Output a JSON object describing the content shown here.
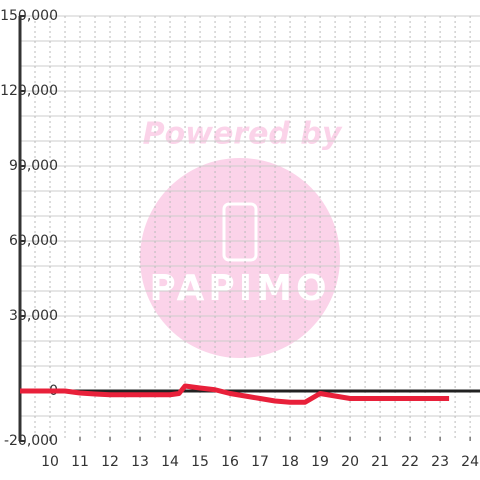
{
  "chart_data": {
    "type": "line",
    "watermark": {
      "title": "Powered by",
      "logo": "PAPIMO"
    },
    "x": [
      9,
      10.5,
      11,
      11.5,
      12,
      13,
      14,
      14.3,
      14.5,
      15,
      15.5,
      16,
      16.5,
      17,
      17.5,
      18,
      18.5,
      19,
      19.5,
      20,
      21,
      22,
      23.3
    ],
    "series": [
      {
        "color": "#e8203a",
        "values": [
          0,
          0,
          -800,
          -1200,
          -1500,
          -1500,
          -1500,
          -1000,
          2000,
          1200,
          500,
          -1000,
          -2000,
          -3000,
          -4000,
          -4500,
          -4500,
          -1000,
          -2000,
          -3000,
          -3000,
          -3000,
          -3000
        ]
      }
    ],
    "xlim": [
      9,
      24.33
    ],
    "xticks": [
      10,
      11,
      12,
      13,
      14,
      15,
      16,
      17,
      18,
      19,
      20,
      21,
      22,
      23,
      24
    ],
    "xgrid": [
      9.5,
      10,
      10.5,
      11,
      11.5,
      12,
      12.5,
      13,
      13.5,
      14,
      14.5,
      15,
      15.5,
      16,
      16.5,
      17,
      17.5,
      18,
      18.5,
      19,
      19.5,
      20,
      20.5,
      21,
      21.5,
      22,
      22.5,
      23,
      23.5,
      24
    ],
    "ylim": [
      -20000,
      150000
    ],
    "yticks": [
      {
        "value": -20000,
        "label": "-20,000"
      },
      0,
      {
        "value": 30000,
        "label": "30,000"
      },
      {
        "value": 60000,
        "label": "60,000"
      },
      {
        "value": 90000,
        "label": "90,000"
      },
      {
        "value": 120000,
        "label": "120,000"
      },
      {
        "value": 150000,
        "label": "150,000"
      }
    ],
    "ygrid": [
      -10000,
      10000,
      20000,
      30000,
      40000,
      50000,
      60000,
      70000,
      80000,
      90000,
      100000,
      110000,
      120000,
      130000,
      140000,
      150000
    ],
    "grid": true
  }
}
